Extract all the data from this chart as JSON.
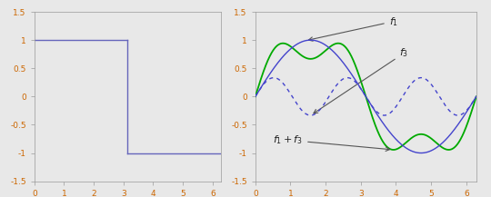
{
  "xlim": [
    0,
    6.2832
  ],
  "ylim": [
    -1.5,
    1.5
  ],
  "yticks": [
    -1.5,
    -1.0,
    -0.5,
    0,
    0.5,
    1.0,
    1.5
  ],
  "ytick_labels": [
    "-1.5",
    "-1",
    "-0.5",
    "0",
    "0.5",
    "1",
    "1.5"
  ],
  "xticks": [
    0,
    1,
    2,
    3,
    4,
    5,
    6
  ],
  "xtick_labels": [
    "0",
    "1",
    "2",
    "3",
    "4",
    "5",
    "6"
  ],
  "pi": 3.14159265358979,
  "square_color": "#6666bb",
  "f1_color": "#4444cc",
  "f3_color": "#4444cc",
  "f1f3_color": "#00aa00",
  "annotation_color": "#333333",
  "bg_color": "#e8e8e8",
  "fig_bg": "#e8e8e8",
  "spine_color": "#999999",
  "tick_label_color": "#cc6600",
  "amp1": 1.0,
  "amp3": 0.3333333333333333
}
